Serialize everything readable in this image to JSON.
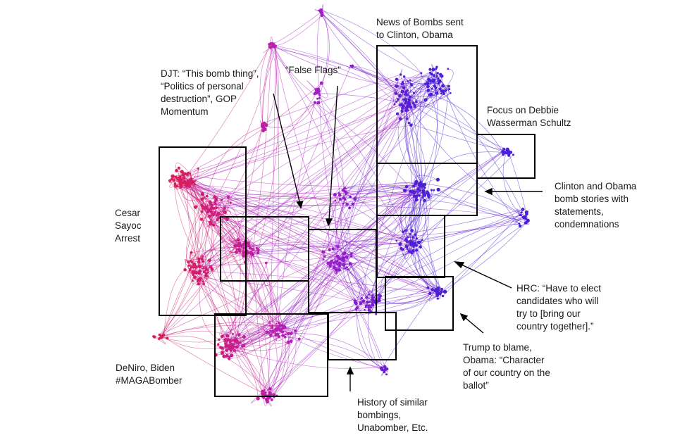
{
  "annotations": {
    "news_bombs": "News of Bombs sent\nto Clinton, Obama",
    "focus_dws": "Focus on Debbie\nWasserman Schultz",
    "clinton_obama": "Clinton and Obama\nbomb stories with\nstatements,\ncondemnations",
    "hrc": "HRC: “Have to elect\ncandidates who will\ntry to [bring our\ncountry together].”",
    "trump_blame": "Trump to blame,\nObama: “Character\nof our country on the\nballot”",
    "history": "History of similar\nbombings,\nUnabomber, Etc.",
    "deniro": "DeNiro, Biden\n#MAGABomber",
    "sayoc": "Cesar\nSayoc\nArrest",
    "djt": "DJT: “This bomb thing”,\n“Politics of personal\ndestruction”, GOP\nMomentum",
    "false_flags": "“False Flags”"
  },
  "colors": {
    "red_cluster": "#d81e5b",
    "magenta_cluster": "#b21fc4",
    "blue_cluster": "#4b1fd6",
    "box_stroke": "#000000",
    "text": "#1a1a1a"
  }
}
